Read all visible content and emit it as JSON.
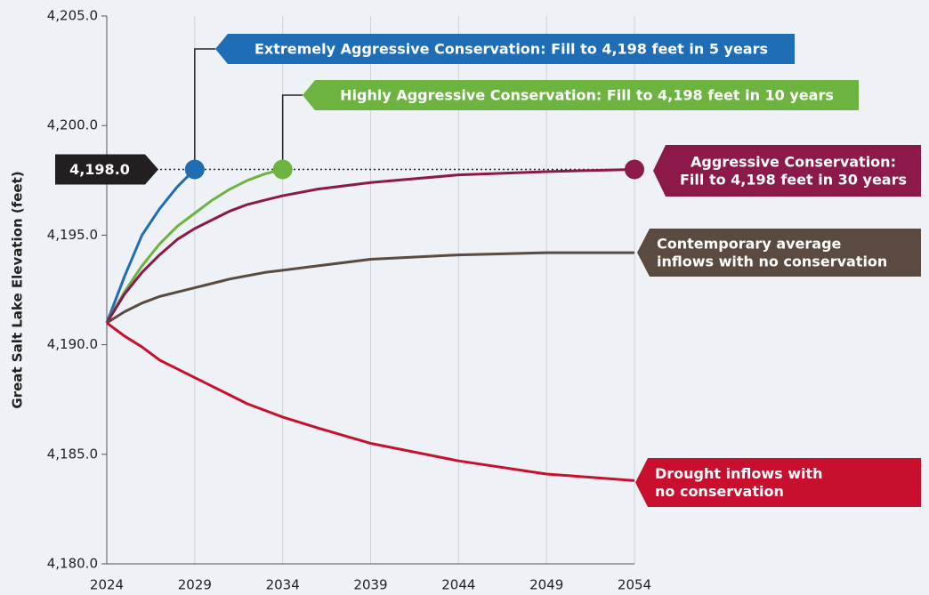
{
  "chart_data": {
    "type": "line",
    "y_label": "Great Salt Lake Elevation (feet)",
    "x": [
      2024,
      2025,
      2026,
      2027,
      2028,
      2029,
      2030,
      2031,
      2032,
      2033,
      2034,
      2036,
      2039,
      2044,
      2049,
      2054
    ],
    "xlim": [
      2024,
      2054
    ],
    "xticks": [
      2024,
      2029,
      2034,
      2039,
      2044,
      2049,
      2054
    ],
    "ylim": [
      4180,
      4205
    ],
    "yticks": [
      {
        "value": 4180,
        "label": "4,180.0"
      },
      {
        "value": 4185,
        "label": "4,185.0"
      },
      {
        "value": 4190,
        "label": "4,190.0"
      },
      {
        "value": 4195,
        "label": "4,195.0"
      },
      {
        "value": 4200,
        "label": "4,200.0"
      },
      {
        "value": 4205,
        "label": "4,205.0"
      }
    ],
    "grid": "x",
    "reference": {
      "value": 4198,
      "label": "4,198.0"
    },
    "series": [
      {
        "name": "Extremely Aggressive Conservation",
        "label": [
          "Extremely Aggressive Conservation: Fill to 4,198 feet in 5 years"
        ],
        "color": "#1f6db5",
        "end_marker": true,
        "values": [
          4191,
          4193.1,
          4195,
          4196.2,
          4197.2,
          4198,
          null,
          null,
          null,
          null,
          null,
          null,
          null,
          null,
          null,
          null
        ]
      },
      {
        "name": "Highly Aggressive Conservation",
        "label": [
          "Highly Aggressive Conservation: Fill to 4,198 feet in 10 years"
        ],
        "color": "#6db33f",
        "end_marker": true,
        "values": [
          4191,
          4192.4,
          4193.6,
          4194.6,
          4195.4,
          4196,
          4196.6,
          4197.1,
          4197.5,
          4197.8,
          4198,
          null,
          null,
          null,
          null,
          null
        ]
      },
      {
        "name": "Aggressive Conservation",
        "label": [
          "Aggressive Conservation:",
          "Fill to 4,198 feet in 30 years"
        ],
        "color": "#8b1a4a",
        "end_marker": true,
        "values": [
          4191,
          4192.3,
          4193.3,
          4194.1,
          4194.8,
          4195.3,
          4195.7,
          4196.1,
          4196.4,
          4196.6,
          4196.8,
          4197.1,
          4197.4,
          4197.75,
          4197.9,
          4198
        ]
      },
      {
        "name": "Contemporary average inflows with no conservation",
        "label": [
          "Contemporary average",
          "inflows with no conservation"
        ],
        "color": "#5a4a3f",
        "end_marker": false,
        "values": [
          4191,
          4191.5,
          4191.9,
          4192.2,
          4192.4,
          4192.6,
          4192.8,
          4193,
          4193.15,
          4193.3,
          4193.4,
          4193.6,
          4193.9,
          4194.1,
          4194.2,
          4194.2
        ]
      },
      {
        "name": "Drought inflows with no conservation",
        "label": [
          "Drought inflows with",
          "no conservation"
        ],
        "color": "#c8102e",
        "end_marker": false,
        "values": [
          4191,
          4190.4,
          4189.9,
          4189.3,
          4188.9,
          4188.5,
          4188.1,
          4187.7,
          4187.3,
          4187,
          4186.7,
          4186.2,
          4185.5,
          4184.7,
          4184.1,
          4183.8
        ]
      }
    ]
  }
}
